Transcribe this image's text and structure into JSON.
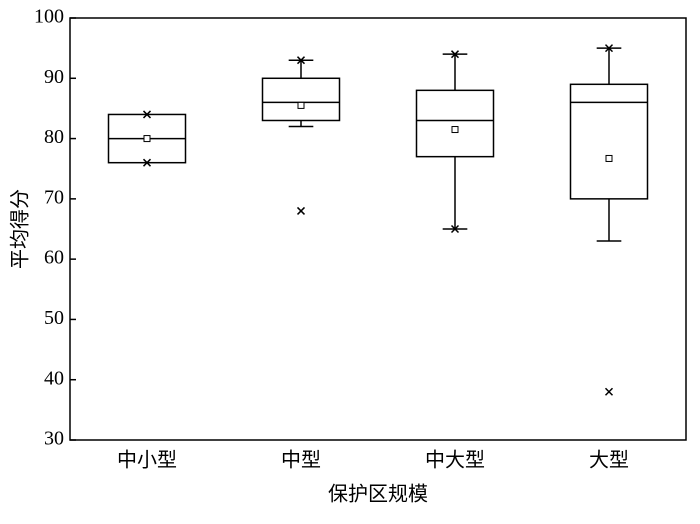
{
  "chart_data": {
    "type": "box",
    "x_label": "保护区规模",
    "y_label": "平均得分",
    "categories": [
      "中小型",
      "中型",
      "中大型",
      "大型"
    ],
    "boxes": [
      {
        "q1": 76,
        "median": 80,
        "q3": 84,
        "mean": 80,
        "whisker_low": null,
        "whisker_high": null,
        "markers": [
          84,
          76
        ]
      },
      {
        "q1": 83,
        "median": 86,
        "q3": 90,
        "mean": 85.5,
        "whisker_low": 82,
        "whisker_high": 93,
        "markers": [
          93,
          68
        ]
      },
      {
        "q1": 77,
        "median": 83,
        "q3": 88,
        "mean": 81.5,
        "whisker_low": 65,
        "whisker_high": 94,
        "markers": [
          94,
          65
        ]
      },
      {
        "q1": 70,
        "median": 86,
        "q3": 89,
        "mean": 76.7,
        "whisker_low": 63,
        "whisker_high": 95,
        "markers": [
          95,
          38
        ]
      }
    ],
    "color": "#000000",
    "ylim": [
      30,
      100
    ],
    "yticks": [
      30,
      40,
      50,
      60,
      70,
      80,
      90,
      100
    ]
  }
}
